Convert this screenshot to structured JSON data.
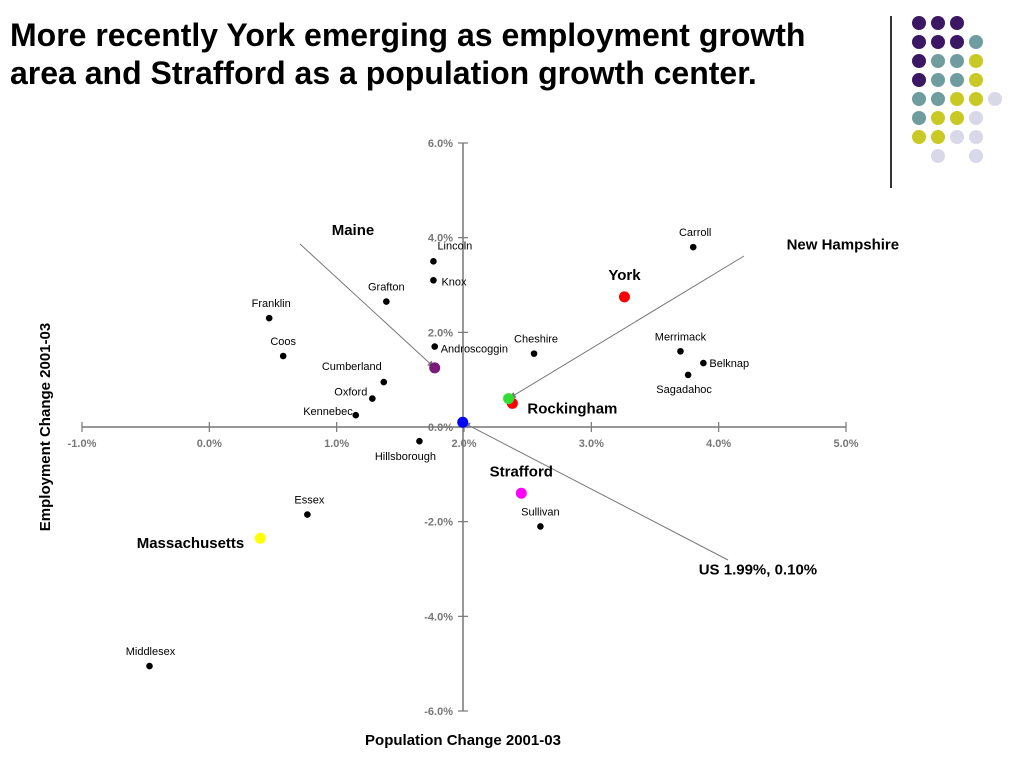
{
  "slide": {
    "title_lines": [
      "More recently York emerging as employment growth",
      "area and Strafford as a population growth center."
    ]
  },
  "decor": {
    "rows": [
      [
        "#3b1764",
        "#3b1764",
        "#3b1764",
        null,
        null
      ],
      [
        "#3b1764",
        "#3b1764",
        "#3b1764",
        "#6f9d9f",
        null
      ],
      [
        "#3b1764",
        "#6f9d9f",
        "#6f9d9f",
        "#c9c925",
        null
      ],
      [
        "#3b1764",
        "#6f9d9f",
        "#6f9d9f",
        "#c9c925",
        null
      ],
      [
        "#6f9d9f",
        "#6f9d9f",
        "#c9c925",
        "#c9c925",
        "#d8d8e8"
      ],
      [
        "#6f9d9f",
        "#c9c925",
        "#c9c925",
        "#d8d8e8",
        null
      ],
      [
        "#c9c925",
        "#c9c925",
        "#d8d8e8",
        "#d8d8e8",
        null
      ],
      [
        null,
        "#d8d8e8",
        null,
        "#d8d8e8",
        null
      ]
    ]
  },
  "chart_data": {
    "type": "scatter",
    "xlabel": "Population Change 2001-03",
    "ylabel": "Employment Change 2001-03",
    "xlim": [
      -1.0,
      5.0
    ],
    "ylim": [
      -6.0,
      6.0
    ],
    "xticks": [
      "-1.0%",
      "0.0%",
      "1.0%",
      "2.0%",
      "3.0%",
      "4.0%",
      "5.0%"
    ],
    "yticks": [
      "6.0%",
      "4.0%",
      "2.0%",
      "0.0%",
      "-2.0%",
      "-4.0%",
      "-6.0%"
    ],
    "xtick_values": [
      -1.0,
      0.0,
      1.0,
      2.0,
      3.0,
      4.0,
      5.0
    ],
    "ytick_values": [
      6.0,
      4.0,
      2.0,
      0.0,
      -2.0,
      -4.0,
      -6.0
    ],
    "grid": false,
    "counties": [
      {
        "name": "Lincoln",
        "x": 1.76,
        "y": 3.5
      },
      {
        "name": "Knox",
        "x": 1.76,
        "y": 3.1
      },
      {
        "name": "Grafton",
        "x": 1.39,
        "y": 2.65
      },
      {
        "name": "Franklin",
        "x": 0.47,
        "y": 2.3
      },
      {
        "name": "Coos",
        "x": 0.58,
        "y": 1.5
      },
      {
        "name": "Androscoggin",
        "x": 1.77,
        "y": 1.7
      },
      {
        "name": "Cumberland",
        "x": 1.37,
        "y": 0.95
      },
      {
        "name": "Oxford",
        "x": 1.28,
        "y": 0.6
      },
      {
        "name": "Kennebec",
        "x": 1.15,
        "y": 0.25
      },
      {
        "name": "Hillsborough",
        "x": 1.65,
        "y": -0.3
      },
      {
        "name": "Cheshire",
        "x": 2.55,
        "y": 1.55
      },
      {
        "name": "Carroll",
        "x": 3.8,
        "y": 3.8
      },
      {
        "name": "Merrimack",
        "x": 3.7,
        "y": 1.6
      },
      {
        "name": "Belknap",
        "x": 3.88,
        "y": 1.35
      },
      {
        "name": "Sagadahoc",
        "x": 3.76,
        "y": 1.1
      },
      {
        "name": "Sullivan",
        "x": 2.6,
        "y": -2.1
      },
      {
        "name": "Essex",
        "x": 0.77,
        "y": -1.85
      },
      {
        "name": "Middlesex",
        "x": -0.47,
        "y": -5.05
      }
    ],
    "highlights": [
      {
        "name": "York",
        "x": 3.26,
        "y": 2.75,
        "color": "#ff0000"
      },
      {
        "name": "Rockingham",
        "x": 2.38,
        "y": 0.5,
        "color": "#ff0000"
      },
      {
        "name": "New Hampshire",
        "x": 2.35,
        "y": 0.6,
        "color": "#33dd33"
      },
      {
        "name": "Maine",
        "x": 1.77,
        "y": 1.25,
        "color": "#7b1a7b"
      },
      {
        "name": "US 1.99%, 0.10%",
        "x": 1.99,
        "y": 0.1,
        "color": "#0000ff"
      },
      {
        "name": "Strafford",
        "x": 2.45,
        "y": -1.4,
        "color": "#ff00ff"
      },
      {
        "name": "Massachusetts",
        "x": 0.4,
        "y": -2.35,
        "color": "#ffff00"
      }
    ]
  }
}
